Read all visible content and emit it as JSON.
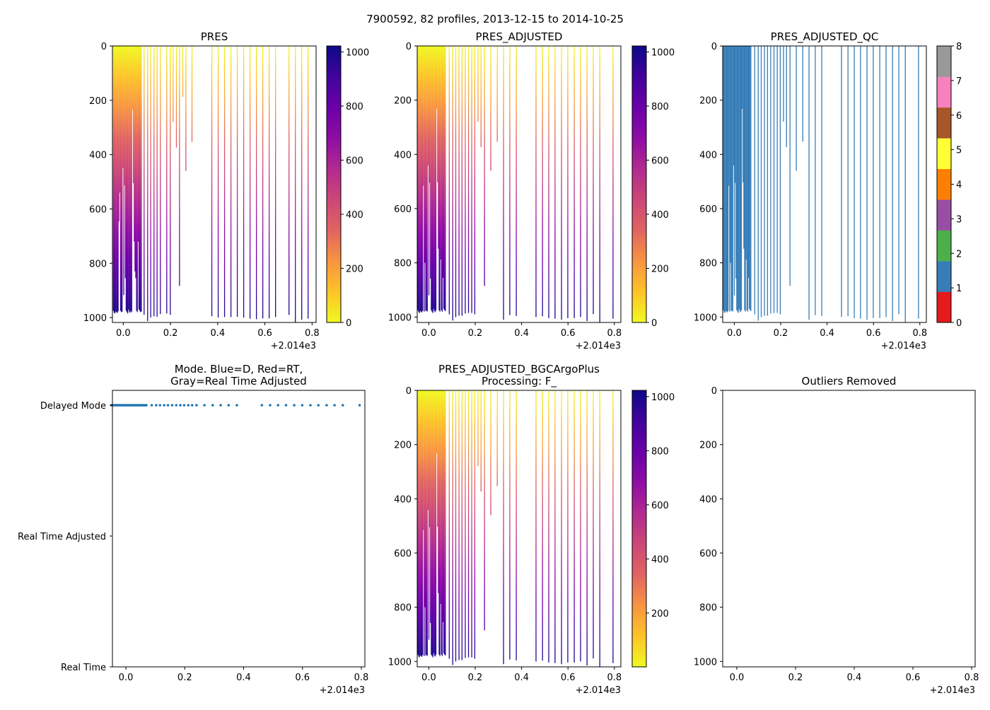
{
  "figure_title": "7900592, 82 profiles, 2013-12-15 to 2014-10-25",
  "colors": {
    "plasma_r": [
      "#f0f921",
      "#fdc328",
      "#f89441",
      "#e16462",
      "#cc4778",
      "#b12a90",
      "#8f0da4",
      "#6a00a8",
      "#41049d",
      "#0d0887"
    ],
    "qc_1": "#377eb8",
    "qc_bands": [
      "#e41a1c",
      "#377eb8",
      "#4daf4a",
      "#984ea3",
      "#ff7f00",
      "#ffff33",
      "#a65628",
      "#f781bf",
      "#999999"
    ],
    "mode_dot": "#1f77b4"
  },
  "chart_data": [
    {
      "id": "pres",
      "type": "heatmap",
      "title": [
        "PRES"
      ],
      "x_ticks": [
        "0.0",
        "0.2",
        "0.4",
        "0.6",
        "0.8"
      ],
      "x_tick_values": [
        0,
        0.2,
        0.4,
        0.6,
        0.8
      ],
      "x_offset_label": "+2.014e3",
      "xlim": [
        -0.046,
        0.817
      ],
      "y_ticks": [
        "0",
        "200",
        "400",
        "600",
        "800",
        "1000"
      ],
      "y_tick_values": [
        0,
        200,
        400,
        600,
        800,
        1000
      ],
      "ylim": [
        1018,
        0
      ],
      "colorbar": {
        "ticks": [
          "0",
          "200",
          "400",
          "600",
          "800",
          "1000"
        ],
        "tick_values": [
          0,
          200,
          400,
          600,
          800,
          1000
        ],
        "range": [
          0,
          1022
        ]
      },
      "dense_profiles": {
        "x_start": -0.044,
        "x_end": 0.078,
        "max_pres": [
          975,
          982,
          985,
          978,
          980,
          983,
          977,
          645,
          540,
          975,
          980,
          978,
          450,
          917,
          513,
          855,
          975,
          980,
          985,
          970,
          978,
          982,
          975,
          980,
          235,
          505,
          720,
          830,
          855,
          975,
          980,
          720,
          970,
          975,
          980,
          978
        ]
      },
      "profiles": [
        {
          "x": 0.088,
          "max_pres": 990
        },
        {
          "x": 0.103,
          "max_pres": 1013
        },
        {
          "x": 0.116,
          "max_pres": 1000
        },
        {
          "x": 0.13,
          "max_pres": 995
        },
        {
          "x": 0.143,
          "max_pres": 997
        },
        {
          "x": 0.157,
          "max_pres": 987
        },
        {
          "x": 0.184,
          "max_pres": 985
        },
        {
          "x": 0.199,
          "max_pres": 990
        },
        {
          "x": 0.211,
          "max_pres": 280
        },
        {
          "x": 0.225,
          "max_pres": 374
        },
        {
          "x": 0.238,
          "max_pres": 883
        },
        {
          "x": 0.252,
          "max_pres": 187
        },
        {
          "x": 0.265,
          "max_pres": 460
        },
        {
          "x": 0.291,
          "max_pres": 353
        },
        {
          "x": 0.375,
          "max_pres": 995
        },
        {
          "x": 0.402,
          "max_pres": 1000
        },
        {
          "x": 0.429,
          "max_pres": 998
        },
        {
          "x": 0.456,
          "max_pres": 998
        },
        {
          "x": 0.483,
          "max_pres": 997
        },
        {
          "x": 0.51,
          "max_pres": 1000
        },
        {
          "x": 0.537,
          "max_pres": 1004
        },
        {
          "x": 0.564,
          "max_pres": 1006
        },
        {
          "x": 0.591,
          "max_pres": 1003
        },
        {
          "x": 0.618,
          "max_pres": 1003
        },
        {
          "x": 0.645,
          "max_pres": 998
        },
        {
          "x": 0.702,
          "max_pres": 990
        },
        {
          "x": 0.729,
          "max_pres": 1018
        },
        {
          "x": 0.756,
          "max_pres": 1008
        },
        {
          "x": 0.783,
          "max_pres": 1004
        }
      ]
    },
    {
      "id": "pres_adjusted",
      "type": "heatmap",
      "title": [
        "PRES_ADJUSTED"
      ],
      "x_ticks": [
        "0.0",
        "0.2",
        "0.4",
        "0.6",
        "0.8"
      ],
      "x_tick_values": [
        0,
        0.2,
        0.4,
        0.6,
        0.8
      ],
      "x_offset_label": "+2.014e3",
      "xlim": [
        -0.05,
        0.828
      ],
      "y_ticks": [
        "0",
        "200",
        "400",
        "600",
        "800",
        "1000"
      ],
      "y_tick_values": [
        0,
        200,
        400,
        600,
        800,
        1000
      ],
      "ylim": [
        1020,
        0
      ],
      "colorbar": {
        "ticks": [
          "0",
          "200",
          "400",
          "600",
          "800",
          "1000"
        ],
        "tick_values": [
          0,
          200,
          400,
          600,
          800,
          1000
        ],
        "range": [
          0,
          1022
        ]
      },
      "dense_profiles": {
        "x_start": -0.049,
        "x_end": 0.073,
        "max_pres": [
          975,
          982,
          985,
          978,
          980,
          983,
          977,
          515,
          980,
          800,
          978,
          975,
          980,
          441,
          920,
          505,
          858,
          975,
          980,
          985,
          970,
          978,
          982,
          975,
          232,
          503,
          748,
          975,
          980,
          788,
          975,
          980,
          855,
          970,
          975,
          978
        ]
      },
      "profiles": [
        {
          "x": 0.088,
          "max_pres": 990
        },
        {
          "x": 0.103,
          "max_pres": 1013
        },
        {
          "x": 0.116,
          "max_pres": 1000
        },
        {
          "x": 0.13,
          "max_pres": 995
        },
        {
          "x": 0.143,
          "max_pres": 995
        },
        {
          "x": 0.157,
          "max_pres": 987
        },
        {
          "x": 0.171,
          "max_pres": 985
        },
        {
          "x": 0.185,
          "max_pres": 985
        },
        {
          "x": 0.198,
          "max_pres": 990
        },
        {
          "x": 0.212,
          "max_pres": 279
        },
        {
          "x": 0.225,
          "max_pres": 373
        },
        {
          "x": 0.24,
          "max_pres": 885
        },
        {
          "x": 0.267,
          "max_pres": 460
        },
        {
          "x": 0.295,
          "max_pres": 353
        },
        {
          "x": 0.322,
          "max_pres": 1010
        },
        {
          "x": 0.349,
          "max_pres": 993
        },
        {
          "x": 0.377,
          "max_pres": 996
        },
        {
          "x": 0.462,
          "max_pres": 1000
        },
        {
          "x": 0.49,
          "max_pres": 997
        },
        {
          "x": 0.517,
          "max_pres": 1004
        },
        {
          "x": 0.544,
          "max_pres": 1006
        },
        {
          "x": 0.572,
          "max_pres": 1010
        },
        {
          "x": 0.599,
          "max_pres": 1004
        },
        {
          "x": 0.627,
          "max_pres": 1004
        },
        {
          "x": 0.654,
          "max_pres": 1000
        },
        {
          "x": 0.682,
          "max_pres": 1015
        },
        {
          "x": 0.709,
          "max_pres": 989
        },
        {
          "x": 0.737,
          "max_pres": 1020
        },
        {
          "x": 0.794,
          "max_pres": 1006
        }
      ]
    },
    {
      "id": "pres_adjusted_qc",
      "type": "heatmap",
      "title": [
        "PRES_ADJUSTED_QC"
      ],
      "x_ticks": [
        "0.0",
        "0.2",
        "0.4",
        "0.6",
        "0.8"
      ],
      "x_tick_values": [
        0,
        0.2,
        0.4,
        0.6,
        0.8
      ],
      "x_offset_label": "+2.014e3",
      "xlim": [
        -0.05,
        0.828
      ],
      "y_ticks": [
        "0",
        "200",
        "400",
        "600",
        "800",
        "1000"
      ],
      "y_tick_values": [
        0,
        200,
        400,
        600,
        800,
        1000
      ],
      "ylim": [
        1020,
        0
      ],
      "qc_value": 1,
      "colorbar": {
        "ticks": [
          "0",
          "1",
          "2",
          "3",
          "4",
          "5",
          "6",
          "7",
          "8"
        ],
        "tick_values": [
          0,
          1,
          2,
          3,
          4,
          5,
          6,
          7,
          8
        ],
        "range": [
          0,
          8
        ]
      }
    },
    {
      "id": "mode",
      "type": "scatter",
      "title": [
        "Mode. Blue=D, Red=RT,",
        "Gray=Real Time Adjusted"
      ],
      "x_ticks": [
        "0.0",
        "0.2",
        "0.4",
        "0.6",
        "0.8"
      ],
      "x_tick_values": [
        0,
        0.2,
        0.4,
        0.6,
        0.8
      ],
      "x_offset_label": "+2.014e3",
      "xlim": [
        -0.0457,
        0.812
      ],
      "y_categories": [
        "Delayed Mode",
        "Real Time Adjusted",
        "Real Time"
      ],
      "series": [
        {
          "name": "Delayed Mode",
          "category": "Delayed Mode",
          "x_source": "pres_adjusted"
        }
      ]
    },
    {
      "id": "pres_adjusted_bgcargoplus",
      "type": "heatmap",
      "title": [
        "PRES_ADJUSTED_BGCArgoPlus",
        "Processing: F_"
      ],
      "x_ticks": [
        "0.0",
        "0.2",
        "0.4",
        "0.6",
        "0.8"
      ],
      "x_tick_values": [
        0,
        0.2,
        0.4,
        0.6,
        0.8
      ],
      "x_offset_label": "+2.014e3",
      "xlim": [
        -0.05,
        0.828
      ],
      "y_ticks": [
        "0",
        "200",
        "400",
        "600",
        "800",
        "1000"
      ],
      "y_tick_values": [
        0,
        200,
        400,
        600,
        800,
        1000
      ],
      "ylim": [
        1020,
        0
      ],
      "colorbar": {
        "ticks": [
          "200",
          "400",
          "600",
          "800",
          "1000"
        ],
        "tick_values": [
          200,
          400,
          600,
          800,
          1000
        ],
        "range": [
          1,
          1023
        ]
      }
    },
    {
      "id": "outliers_removed",
      "type": "scatter",
      "title": [
        "Outliers Removed"
      ],
      "x_ticks": [
        "0.0",
        "0.2",
        "0.4",
        "0.6",
        "0.8"
      ],
      "x_tick_values": [
        0,
        0.2,
        0.4,
        0.6,
        0.8
      ],
      "x_offset_label": "+2.014e3",
      "xlim": [
        -0.048,
        0.812
      ],
      "y_ticks": [
        "0",
        "200",
        "400",
        "600",
        "800",
        "1000"
      ],
      "y_tick_values": [
        0,
        200,
        400,
        600,
        800,
        1000
      ],
      "ylim": [
        1020,
        0
      ],
      "series": []
    }
  ]
}
